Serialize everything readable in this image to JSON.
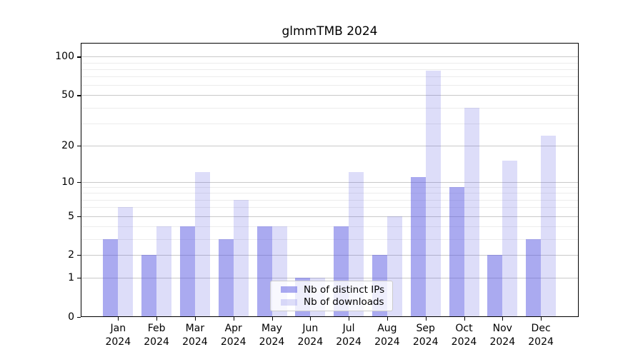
{
  "chart_data": {
    "type": "bar",
    "title": "glmmTMB 2024",
    "categories": [
      "Jan",
      "Feb",
      "Mar",
      "Apr",
      "May",
      "Jun",
      "Jul",
      "Aug",
      "Sep",
      "Oct",
      "Nov",
      "Dec"
    ],
    "year_label": "2024",
    "series": [
      {
        "name": "Nb of distinct IPs",
        "values": [
          3,
          2,
          4,
          3,
          4,
          1,
          4,
          2,
          11,
          9,
          2,
          3
        ],
        "color": "#5555e1",
        "alpha": 0.5,
        "rendered_color": "#aaaaf0"
      },
      {
        "name": "Nb of downloads",
        "values": [
          6,
          4,
          12,
          7,
          4,
          1,
          12,
          5,
          78,
          40,
          15,
          24
        ],
        "color": "#5555e1",
        "alpha": 0.2,
        "rendered_color": "#ddddf9"
      }
    ],
    "y_scale": "log1p",
    "y_ticks_major": [
      0,
      1,
      2,
      5,
      10,
      20,
      50,
      100
    ],
    "y_ticks_minor": [
      3,
      4,
      6,
      7,
      8,
      9,
      30,
      40,
      60,
      70,
      80,
      90
    ],
    "ylim": [
      0,
      128
    ],
    "xlabel": "",
    "ylabel": "",
    "grid": true,
    "legend_position": "inside-bottom-center",
    "colors": {
      "grid_major": "#c9c9c9",
      "grid_minor": "#ececec",
      "spine": "#000000",
      "background": "#ffffff",
      "text": "#000000",
      "legend_border": "#cccccc",
      "legend_bg": "#ffffff"
    }
  }
}
